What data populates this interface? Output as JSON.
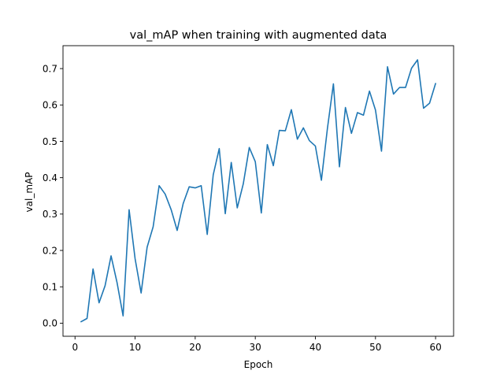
{
  "chart_data": {
    "type": "line",
    "title": "val_mAP when training with augmented data",
    "xlabel": "Epoch",
    "ylabel": "val_mAP",
    "xlim": [
      -2,
      63
    ],
    "ylim": [
      -0.036,
      0.763
    ],
    "xticks": [
      0,
      10,
      20,
      30,
      40,
      50,
      60
    ],
    "yticks": [
      0.0,
      0.1,
      0.2,
      0.3,
      0.4,
      0.5,
      0.6,
      0.7
    ],
    "ytick_labels": [
      "0.0",
      "0.1",
      "0.2",
      "0.3",
      "0.4",
      "0.5",
      "0.6",
      "0.7"
    ],
    "grid": false,
    "series": [
      {
        "color": "#1f77b4",
        "x": [
          1,
          2,
          3,
          4,
          5,
          6,
          7,
          8,
          9,
          10,
          11,
          12,
          13,
          14,
          15,
          16,
          17,
          18,
          19,
          20,
          21,
          22,
          23,
          24,
          25,
          26,
          27,
          28,
          29,
          30,
          31,
          32,
          33,
          34,
          35,
          36,
          37,
          38,
          39,
          40,
          41,
          42,
          43,
          44,
          45,
          46,
          47,
          48,
          49,
          50,
          51,
          52,
          53,
          54,
          55,
          56,
          57,
          58,
          59,
          60
        ],
        "y": [
          0.004,
          0.013,
          0.149,
          0.056,
          0.103,
          0.185,
          0.111,
          0.02,
          0.312,
          0.177,
          0.083,
          0.209,
          0.265,
          0.378,
          0.355,
          0.312,
          0.255,
          0.329,
          0.375,
          0.372,
          0.378,
          0.244,
          0.408,
          0.48,
          0.301,
          0.442,
          0.317,
          0.383,
          0.483,
          0.444,
          0.303,
          0.491,
          0.433,
          0.53,
          0.529,
          0.587,
          0.506,
          0.537,
          0.502,
          0.487,
          0.393,
          0.535,
          0.658,
          0.43,
          0.593,
          0.522,
          0.579,
          0.572,
          0.638,
          0.586,
          0.473,
          0.705,
          0.63,
          0.648,
          0.648,
          0.701,
          0.724,
          0.591,
          0.605,
          0.659
        ]
      }
    ]
  }
}
